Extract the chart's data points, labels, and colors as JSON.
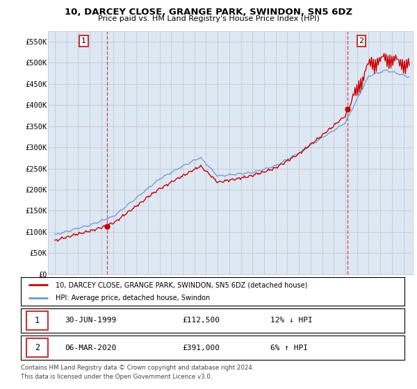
{
  "title": "10, DARCEY CLOSE, GRANGE PARK, SWINDON, SN5 6DZ",
  "subtitle": "Price paid vs. HM Land Registry's House Price Index (HPI)",
  "ylim": [
    0,
    575000
  ],
  "yticks": [
    0,
    50000,
    100000,
    150000,
    200000,
    250000,
    300000,
    350000,
    400000,
    450000,
    500000,
    550000
  ],
  "sale1_year": 1999.495,
  "sale1_price": 112500,
  "sale2_year": 2020.175,
  "sale2_price": 391000,
  "legend_line1": "10, DARCEY CLOSE, GRANGE PARK, SWINDON, SN5 6DZ (detached house)",
  "legend_line2": "HPI: Average price, detached house, Swindon",
  "footer1": "Contains HM Land Registry data © Crown copyright and database right 2024.",
  "footer2": "This data is licensed under the Open Government Licence v3.0.",
  "price_color": "#cc0000",
  "hpi_color": "#6699cc",
  "grid_color": "#cccccc",
  "bg_color": "#dde8f5",
  "box_color": "#cc3333",
  "vline_color": "#cc3333",
  "table_row1_date": "30-JUN-1999",
  "table_row1_price": "£112,500",
  "table_row1_hpi": "12% ↓ HPI",
  "table_row2_date": "06-MAR-2020",
  "table_row2_price": "£391,000",
  "table_row2_hpi": "6% ↑ HPI"
}
